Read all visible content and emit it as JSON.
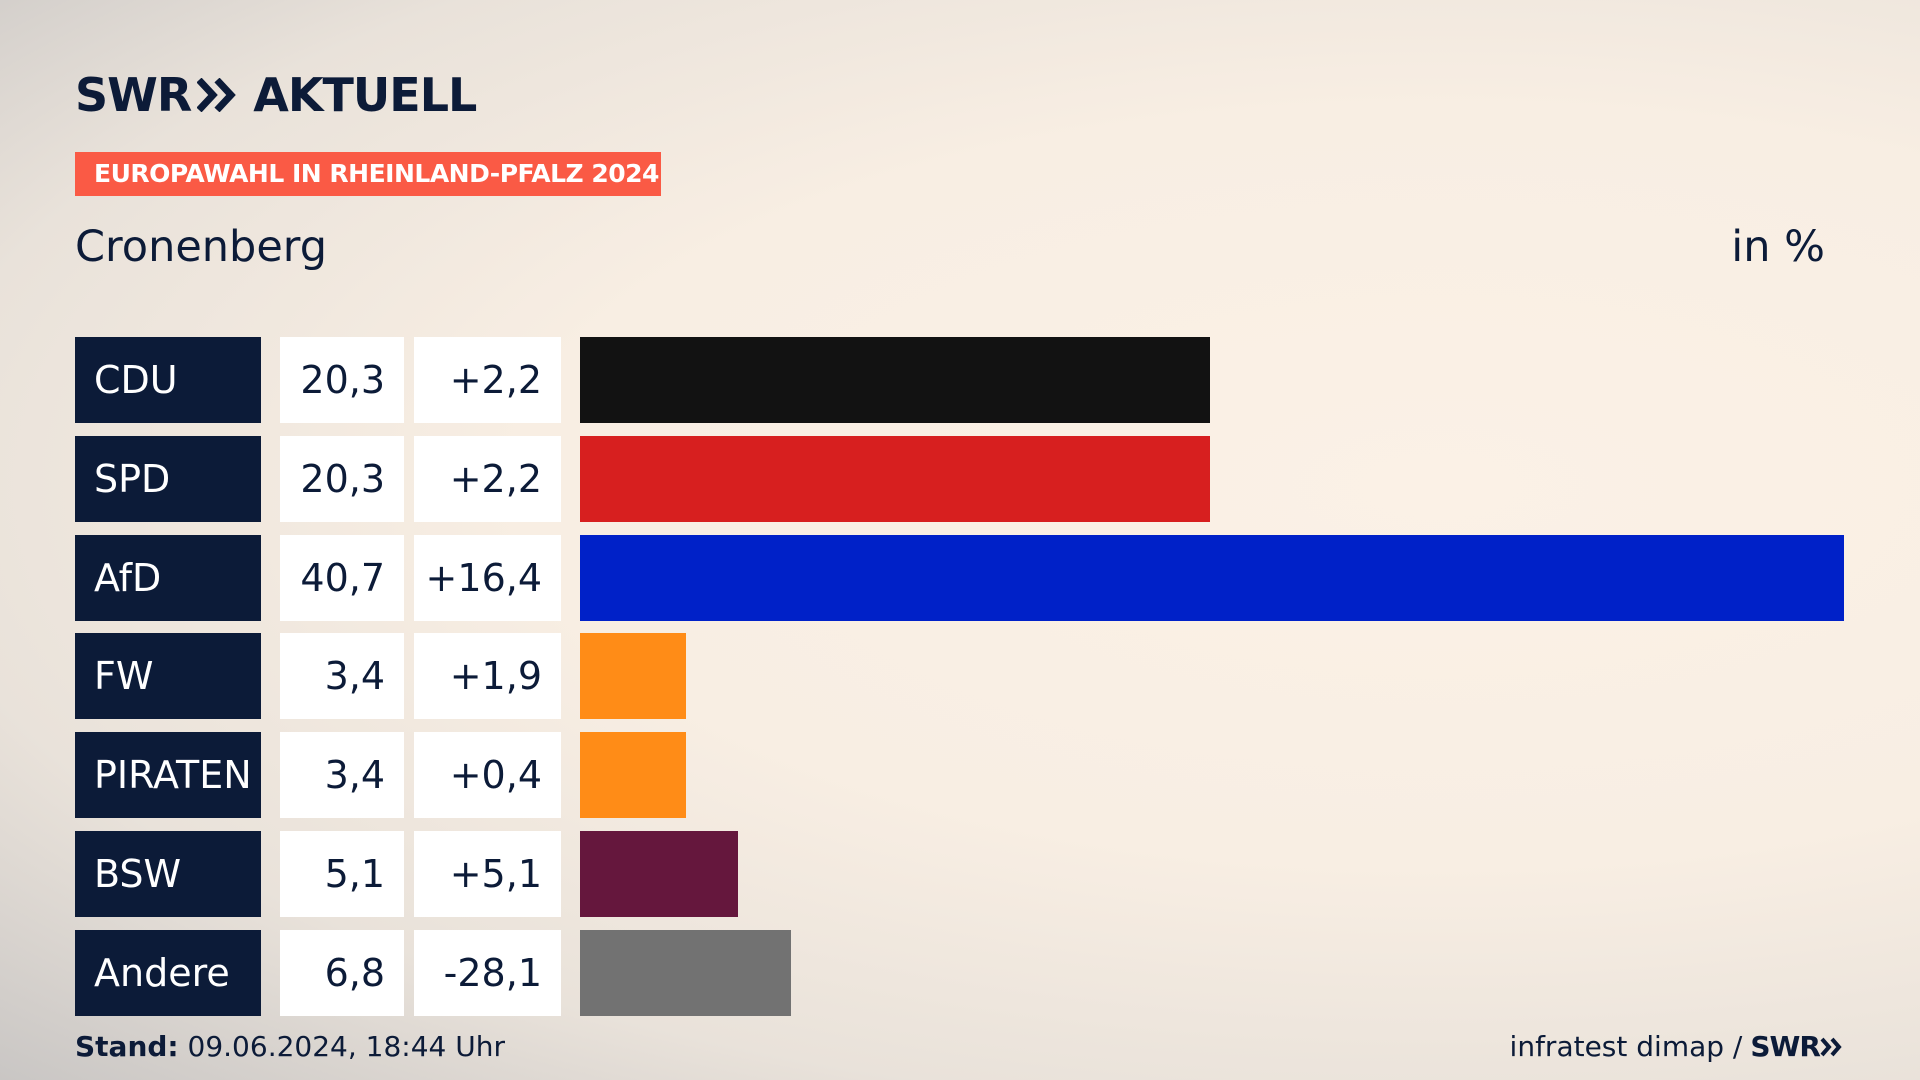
{
  "header": {
    "brand": "SWR",
    "brand_suffix": "AKTUELL",
    "tag": "EUROPAWAHL IN RHEINLAND-PFALZ 2024"
  },
  "chart_data": {
    "type": "hbar",
    "title": "Cronenberg",
    "unit": "in %",
    "categories": [
      "CDU",
      "SPD",
      "AfD",
      "FW",
      "PIRATEN",
      "BSW",
      "Andere"
    ],
    "values": [
      20.3,
      20.3,
      40.7,
      3.4,
      3.4,
      5.1,
      6.8
    ],
    "value_labels": [
      "20,3",
      "20,3",
      "40,7",
      "3,4",
      "3,4",
      "5,1",
      "6,8"
    ],
    "change_labels": [
      "+2,2",
      "+2,2",
      "+16,4",
      "+1,9",
      "+0,4",
      "+5,1",
      "-28,1"
    ],
    "colors": [
      "#121212",
      "#d71f1f",
      "#0021c8",
      "#ff8c17",
      "#ff8c17",
      "#65173d",
      "#727272"
    ]
  },
  "footer": {
    "stand_label": "Stand:",
    "stand": "09.06.2024, 18:44 Uhr",
    "source": "infratest dimap /",
    "source_brand": "SWR"
  }
}
